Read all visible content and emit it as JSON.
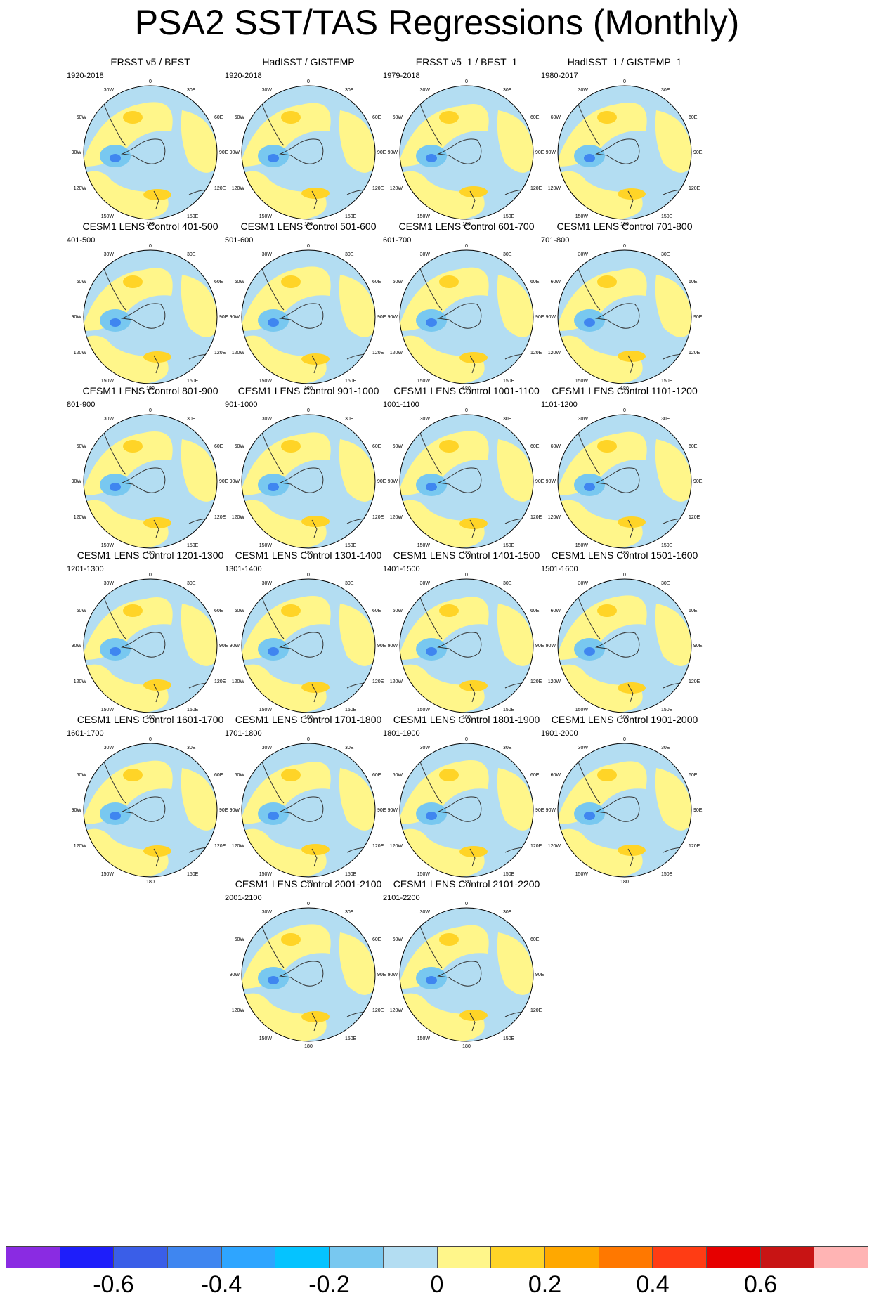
{
  "title": "PSA2 SST/TAS Regressions (Monthly)",
  "panels": [
    {
      "title": "ERSST v5 / BEST",
      "period": "1920-2018"
    },
    {
      "title": "HadISST / GISTEMP",
      "period": "1920-2018"
    },
    {
      "title": "ERSST v5_1 / BEST_1",
      "period": "1979-2018"
    },
    {
      "title": "HadISST_1 / GISTEMP_1",
      "period": "1980-2017"
    },
    {
      "title": "CESM1 LENS Control 401-500",
      "period": "401-500"
    },
    {
      "title": "CESM1 LENS Control 501-600",
      "period": "501-600"
    },
    {
      "title": "CESM1 LENS Control 601-700",
      "period": "601-700"
    },
    {
      "title": "CESM1 LENS Control 701-800",
      "period": "701-800"
    },
    {
      "title": "CESM1 LENS Control 801-900",
      "period": "801-900"
    },
    {
      "title": "CESM1 LENS Control 901-1000",
      "period": "901-1000"
    },
    {
      "title": "CESM1 LENS Control 1001-1100",
      "period": "1001-1100"
    },
    {
      "title": "CESM1 LENS Control 1101-1200",
      "period": "1101-1200"
    },
    {
      "title": "CESM1 LENS Control 1201-1300",
      "period": "1201-1300"
    },
    {
      "title": "CESM1 LENS Control 1301-1400",
      "period": "1301-1400"
    },
    {
      "title": "CESM1 LENS Control 1401-1500",
      "period": "1401-1500"
    },
    {
      "title": "CESM1 LENS Control 1501-1600",
      "period": "1501-1600"
    },
    {
      "title": "CESM1 LENS Control 1601-1700",
      "period": "1601-1700"
    },
    {
      "title": "CESM1 LENS Control 1701-1800",
      "period": "1701-1800"
    },
    {
      "title": "CESM1 LENS Control 1801-1900",
      "period": "1801-1900"
    },
    {
      "title": "CESM1 LENS Control 1901-2000",
      "period": "1901-2000"
    },
    {
      "title": "CESM1 LENS Control 2001-2100",
      "period": "2001-2100"
    },
    {
      "title": "CESM1 LENS Control 2101-2200",
      "period": "2101-2200"
    }
  ],
  "map_labels": {
    "top": "0",
    "upper_left": "30W",
    "upper_right": "30E",
    "left_upper": "60W",
    "right_upper": "60E",
    "left": "90W",
    "right": "90E",
    "left_lower": "120W",
    "right_lower": "120E",
    "lower_left": "150W",
    "lower_right": "150E",
    "bottom": "180"
  },
  "colorbar": {
    "colors": [
      "#8a2be2",
      "#1e1efa",
      "#3a5ee8",
      "#3f86f0",
      "#2ea5ff",
      "#05c3ff",
      "#78c8f0",
      "#b3ddf2",
      "#fff68a",
      "#ffd427",
      "#ffa800",
      "#ff7800",
      "#ff3c14",
      "#e60000",
      "#c81414",
      "#ffb4b4"
    ],
    "labels": [
      "-0.6",
      "-0.4",
      "-0.2",
      "0",
      "0.2",
      "0.4",
      "0.6"
    ]
  },
  "field_colors": {
    "positive_weak": "#fff68a",
    "negative_weak": "#b3ddf2",
    "positive_moderate": "#ffd427",
    "negative_moderate": "#78c8f0",
    "negative_strong": "#3f86f0"
  }
}
